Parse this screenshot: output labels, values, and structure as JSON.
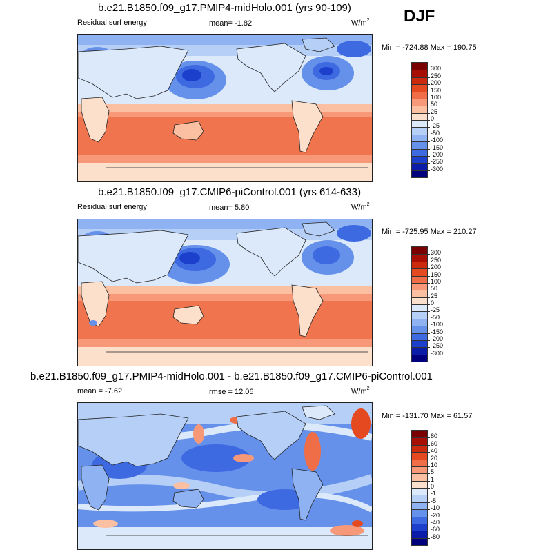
{
  "season": "DJF",
  "panels": [
    {
      "title": "b.e21.B1850.f09_g17.PMIP4-midHolo.001 (yrs 90-109)",
      "left_label": "Residual surf energy",
      "center_label": "mean=  -1.82",
      "units_base": "W/m",
      "units_exp": "2",
      "minmax": "Min = -724.88 Max = 190.75",
      "levels": [
        "300",
        "250",
        "200",
        "150",
        "100",
        "50",
        "25",
        "0",
        "-25",
        "-50",
        "-100",
        "-150",
        "-200",
        "-250",
        "-300"
      ],
      "colors": [
        "#7a0000",
        "#a80f04",
        "#cc2a0c",
        "#e5491f",
        "#ef6e47",
        "#f79978",
        "#fbbfa1",
        "#fde0cc",
        "#dce9fb",
        "#b6cff7",
        "#8fb3f2",
        "#6691eb",
        "#3d69e1",
        "#1c3fcc",
        "#0a1ca8",
        "#00007e"
      ]
    },
    {
      "title": "b.e21.B1850.f09_g17.CMIP6-piControl.001 (yrs 614-633)",
      "left_label": "Residual surf energy",
      "center_label": "mean=  5.80",
      "units_base": "W/m",
      "units_exp": "2",
      "minmax": "Min = -725.95 Max = 210.27",
      "levels": [
        "300",
        "250",
        "200",
        "150",
        "100",
        "50",
        "25",
        "0",
        "-25",
        "-50",
        "-100",
        "-150",
        "-200",
        "-250",
        "-300"
      ],
      "colors": [
        "#7a0000",
        "#a80f04",
        "#cc2a0c",
        "#e5491f",
        "#ef6e47",
        "#f79978",
        "#fbbfa1",
        "#fde0cc",
        "#dce9fb",
        "#b6cff7",
        "#8fb3f2",
        "#6691eb",
        "#3d69e1",
        "#1c3fcc",
        "#0a1ca8",
        "#00007e"
      ]
    },
    {
      "title": "b.e21.B1850.f09_g17.PMIP4-midHolo.001 - b.e21.B1850.f09_g17.CMIP6-piControl.001",
      "left_label": "mean =  -7.62",
      "center_label": "rmse =  12.06",
      "units_base": "W/m",
      "units_exp": "2",
      "minmax": "Min = -131.70 Max =  61.57",
      "levels": [
        "80",
        "60",
        "40",
        "20",
        "10",
        "5",
        "1",
        "0",
        "-1",
        "-5",
        "-10",
        "-20",
        "-40",
        "-60",
        "-80"
      ],
      "colors": [
        "#7a0000",
        "#a80f04",
        "#cc2a0c",
        "#e5491f",
        "#ef6e47",
        "#f79978",
        "#fbbfa1",
        "#fde0cc",
        "#dce9fb",
        "#b6cff7",
        "#8fb3f2",
        "#6691eb",
        "#3d69e1",
        "#1c3fcc",
        "#0a1ca8",
        "#00007e"
      ]
    }
  ]
}
